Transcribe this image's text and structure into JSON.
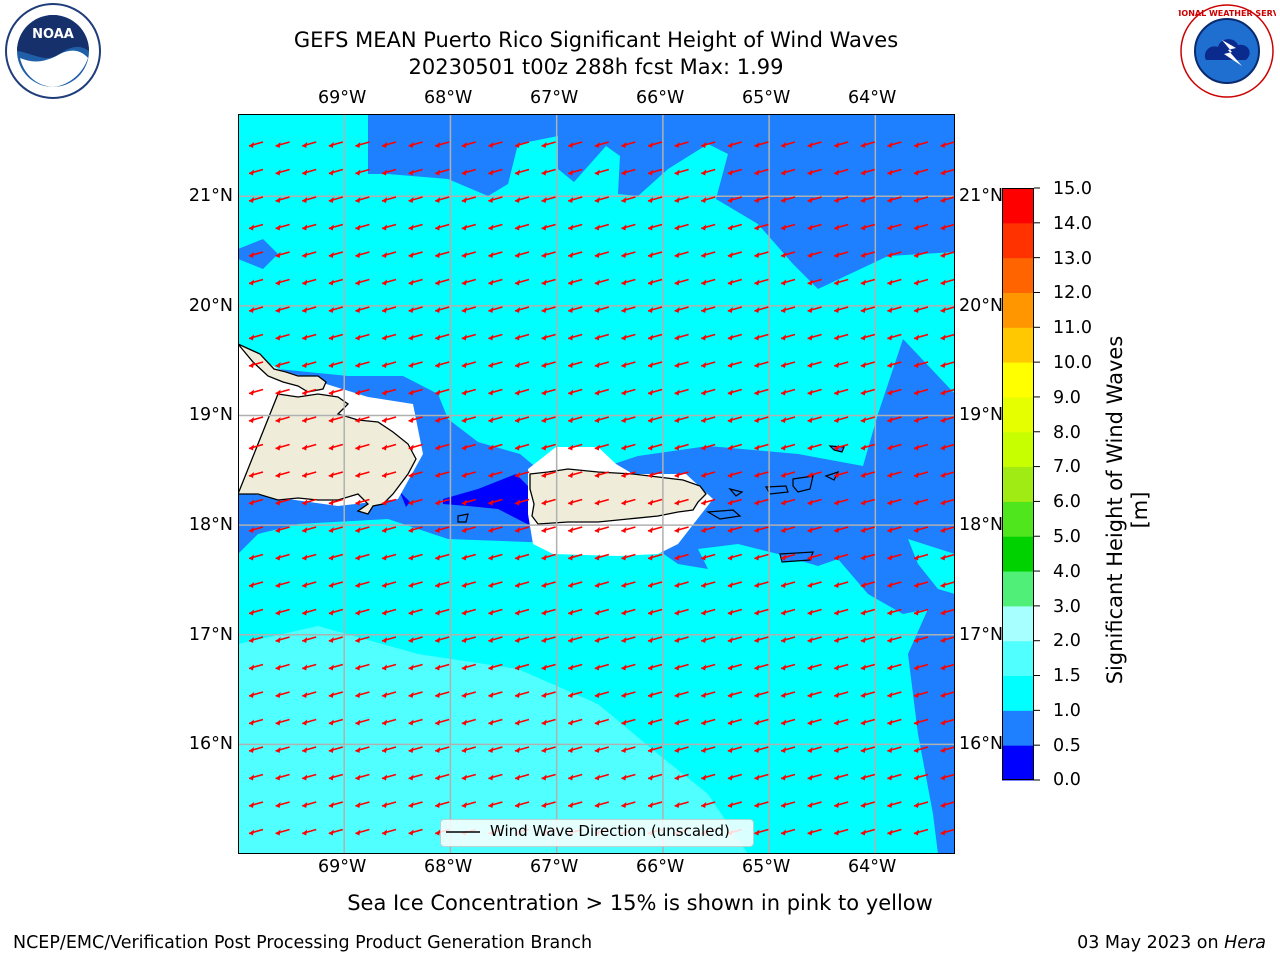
{
  "header": {
    "title_line1": "GEFS MEAN Puerto Rico Significant Height of Wind Waves",
    "title_line2": "20230501 t00z 288h fcst   Max: 1.99"
  },
  "logos": {
    "left": "noaa-logo",
    "right": "nws-logo",
    "left_text": "NOAA",
    "right_text": "NATIONAL WEATHER SERVICE"
  },
  "map": {
    "lon_labels": [
      "69°W",
      "68°W",
      "67°W",
      "66°W",
      "65°W",
      "64°W"
    ],
    "lat_labels": [
      "21°N",
      "20°N",
      "19°N",
      "18°N",
      "17°N",
      "16°N"
    ],
    "lon_values": [
      -69,
      -68,
      -67,
      -66,
      -65,
      -64
    ],
    "lat_values": [
      21,
      20,
      19,
      18,
      17,
      16
    ],
    "extent": {
      "lon_min": -70.0,
      "lon_max": -63.25,
      "lat_min": 15.0,
      "lat_max": 21.75
    },
    "legend_label": "Wind Wave Direction (unscaled)",
    "arrow_color": "#ff0000",
    "land_color": "#efedda",
    "grid_color": "#b0b0b0"
  },
  "colorbar": {
    "ticks": [
      "15.0",
      "14.0",
      "13.0",
      "12.0",
      "11.0",
      "10.0",
      "9.0",
      "8.0",
      "7.0",
      "6.0",
      "5.0",
      "4.0",
      "3.0",
      "2.0",
      "1.5",
      "1.0",
      "0.5",
      "0.0"
    ],
    "colors": [
      "#0000ff",
      "#1e7fff",
      "#00ffff",
      "#50ffff",
      "#a8ffff",
      "#50f078",
      "#00d200",
      "#50e61e",
      "#a0eb14",
      "#c8ff00",
      "#e6ff00",
      "#ffff00",
      "#ffc800",
      "#ff9600",
      "#ff6400",
      "#ff3200",
      "#ff0000"
    ],
    "label": "Significant Height of Wind Waves [m]"
  },
  "notes": {
    "sea_ice": "Sea Ice Concentration > 15% is shown in pink to yellow"
  },
  "footer": {
    "left": "NCEP/EMC/Verification Post Processing Product Generation Branch",
    "right_date": "03 May 2023 on ",
    "right_host": "Hera"
  }
}
